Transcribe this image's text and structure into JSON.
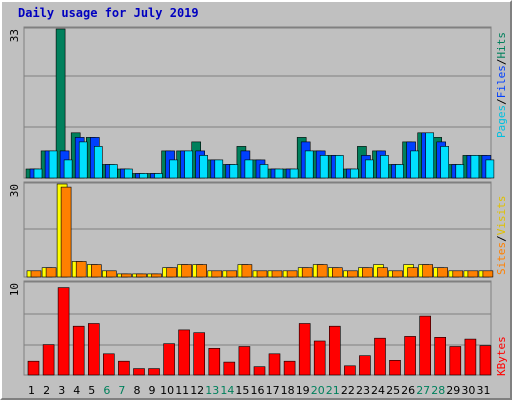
{
  "title": "Daily usage for July 2019",
  "colors": {
    "background": "#c0c0c0",
    "title": "#0000c0",
    "hits": "#00805c",
    "files": "#0040ff",
    "pages": "#00e0ff",
    "visits": "#ffff00",
    "sites": "#ff8000",
    "kbytes": "#ff0000",
    "weekend_label": "#00805c",
    "weekday_label": "#000000"
  },
  "legend": {
    "top": [
      "Pages",
      "/",
      "Files",
      "/",
      "Hits"
    ],
    "middle": [
      "Sites",
      "/",
      "Visits"
    ],
    "bottom": [
      "KBytes"
    ]
  },
  "chart_data": [
    {
      "type": "bar",
      "panel": "hits-files-pages",
      "ylim": [
        0,
        33
      ],
      "ymax_label": "33",
      "categories": [
        "1",
        "2",
        "3",
        "4",
        "5",
        "6",
        "7",
        "8",
        "9",
        "10",
        "11",
        "12",
        "13",
        "14",
        "15",
        "16",
        "17",
        "18",
        "19",
        "20",
        "21",
        "22",
        "23",
        "24",
        "25",
        "26",
        "27",
        "28",
        "29",
        "30",
        "31"
      ],
      "series": [
        {
          "name": "Hits",
          "values": [
            2,
            6,
            33,
            10,
            9,
            3,
            2,
            1,
            1,
            6,
            6,
            8,
            4,
            3,
            7,
            4,
            2,
            2,
            9,
            6,
            5,
            2,
            7,
            6,
            3,
            8,
            10,
            9,
            3,
            5,
            5
          ]
        },
        {
          "name": "Files",
          "values": [
            2,
            6,
            6,
            9,
            9,
            3,
            2,
            1,
            1,
            6,
            6,
            6,
            4,
            3,
            6,
            4,
            2,
            2,
            8,
            6,
            5,
            2,
            5,
            6,
            3,
            8,
            10,
            8,
            3,
            5,
            5
          ]
        },
        {
          "name": "Pages",
          "values": [
            2,
            6,
            4,
            8,
            7,
            3,
            2,
            1,
            1,
            4,
            6,
            5,
            4,
            3,
            4,
            3,
            2,
            2,
            6,
            5,
            5,
            2,
            4,
            5,
            3,
            6,
            10,
            7,
            3,
            5,
            4
          ]
        }
      ]
    },
    {
      "type": "bar",
      "panel": "sites-visits",
      "ylim": [
        0,
        30
      ],
      "ymax_label": "30",
      "categories": [
        "1",
        "2",
        "3",
        "4",
        "5",
        "6",
        "7",
        "8",
        "9",
        "10",
        "11",
        "12",
        "13",
        "14",
        "15",
        "16",
        "17",
        "18",
        "19",
        "20",
        "21",
        "22",
        "23",
        "24",
        "25",
        "26",
        "27",
        "28",
        "29",
        "30",
        "31"
      ],
      "series": [
        {
          "name": "Visits",
          "values": [
            2,
            3,
            30,
            5,
            4,
            2,
            1,
            1,
            1,
            3,
            4,
            4,
            2,
            2,
            4,
            2,
            2,
            2,
            3,
            4,
            3,
            2,
            3,
            4,
            2,
            4,
            4,
            3,
            2,
            2,
            2
          ]
        },
        {
          "name": "Sites",
          "values": [
            2,
            3,
            29,
            5,
            4,
            2,
            1,
            1,
            1,
            3,
            4,
            4,
            2,
            2,
            4,
            2,
            2,
            2,
            3,
            4,
            3,
            2,
            3,
            3,
            2,
            3,
            4,
            3,
            2,
            2,
            2
          ]
        }
      ]
    },
    {
      "type": "bar",
      "panel": "kbytes",
      "ylim": [
        0,
        10
      ],
      "ymax_label": "10",
      "categories": [
        "1",
        "2",
        "3",
        "4",
        "5",
        "6",
        "7",
        "8",
        "9",
        "10",
        "11",
        "12",
        "13",
        "14",
        "15",
        "16",
        "17",
        "18",
        "19",
        "20",
        "21",
        "22",
        "23",
        "24",
        "25",
        "26",
        "27",
        "28",
        "29",
        "30",
        "31"
      ],
      "series": [
        {
          "name": "KBytes",
          "values": [
            1.5,
            3.3,
            9.5,
            5.3,
            5.6,
            2.3,
            1.5,
            0.7,
            0.7,
            3.4,
            4.9,
            4.6,
            2.9,
            1.4,
            3.1,
            0.9,
            2.3,
            1.5,
            5.6,
            3.7,
            5.3,
            1.0,
            2.1,
            4.0,
            1.6,
            4.2,
            6.4,
            4.1,
            3.1,
            3.9,
            3.2
          ]
        }
      ]
    }
  ],
  "weekend_days": [
    6,
    7,
    13,
    14,
    20,
    21,
    27,
    28
  ]
}
